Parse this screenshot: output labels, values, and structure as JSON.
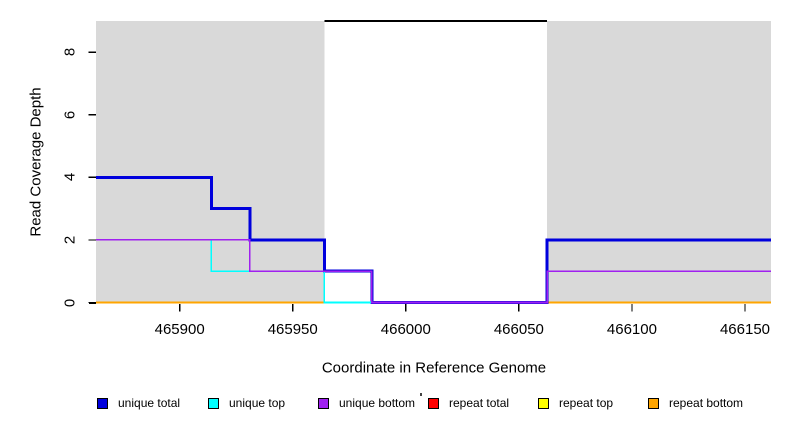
{
  "figure": {
    "xlabel": "Coordinate in Reference Genome",
    "ylabel": "Read Coverage Depth",
    "background_color": "#ffffff",
    "masked_region_color": "#d9d9d9",
    "axis_color": "#000000"
  },
  "chart_data": {
    "type": "line",
    "subtype": "step-coverage",
    "title": "",
    "xlabel": "Coordinate in Reference Genome",
    "ylabel": "Read Coverage Depth",
    "xlim": [
      465863,
      466161.5
    ],
    "ylim": [
      0,
      9
    ],
    "x_ticks": [
      465900,
      465950,
      466000,
      466050,
      466100,
      466150
    ],
    "y_ticks": [
      0,
      2,
      4,
      6,
      8
    ],
    "grid": false,
    "shaded_regions": [
      {
        "name": "left-shaded-region",
        "x0": 465863,
        "x1": 465964,
        "color": "#d9d9d9"
      },
      {
        "name": "right-shaded-region",
        "x0": 466062.5,
        "x1": 466161.5,
        "color": "#d9d9d9"
      }
    ],
    "gap_top_line": {
      "x0": 465964,
      "x1": 466062.5,
      "y": 9,
      "color": "#000000"
    },
    "series": [
      {
        "name": "unique total",
        "color": "#0000dd",
        "line_width": 3,
        "steps": [
          {
            "x": 465863,
            "depth": 4
          },
          {
            "x": 465914,
            "depth": 3
          },
          {
            "x": 465931,
            "depth": 2
          },
          {
            "x": 465964,
            "depth": 1
          },
          {
            "x": 465985,
            "depth": 0
          },
          {
            "x": 466062.5,
            "depth": 2
          }
        ]
      },
      {
        "name": "unique top",
        "color": "#00ffff",
        "line_width": 1.6,
        "steps": [
          {
            "x": 465863,
            "depth": 2
          },
          {
            "x": 465914,
            "depth": 1
          },
          {
            "x": 465964,
            "depth": 0
          },
          {
            "x": 466062.5,
            "depth": 1
          }
        ]
      },
      {
        "name": "unique bottom",
        "color": "#a020f0",
        "line_width": 1.6,
        "steps": [
          {
            "x": 465863,
            "depth": 2
          },
          {
            "x": 465931,
            "depth": 1
          },
          {
            "x": 465985,
            "depth": 0
          },
          {
            "x": 466062.5,
            "depth": 1
          }
        ]
      },
      {
        "name": "repeat total",
        "color": "#ff0000",
        "line_width": 1.5,
        "steps": [
          {
            "x": 465863,
            "depth": 0
          }
        ]
      },
      {
        "name": "repeat top",
        "color": "#ffff00",
        "line_width": 1.5,
        "steps": [
          {
            "x": 465863,
            "depth": 0
          }
        ]
      },
      {
        "name": "repeat bottom",
        "color": "#ffa500",
        "line_width": 1.8,
        "steps": [
          {
            "x": 465863,
            "depth": 0
          }
        ]
      }
    ],
    "draw_order": [
      "repeat total",
      "repeat top",
      "repeat bottom",
      "unique total",
      "unique top",
      "unique bottom"
    ],
    "legend_position": "bottom"
  },
  "legend": {
    "items": [
      {
        "label": "unique total",
        "color": "#0000dd"
      },
      {
        "label": "unique top",
        "color": "#00ffff"
      },
      {
        "label": "unique bottom",
        "color": "#a020f0"
      },
      {
        "label": "repeat total",
        "color": "#ff0000"
      },
      {
        "label": "repeat top",
        "color": "#ffff00"
      },
      {
        "label": "repeat bottom",
        "color": "#ffa500"
      }
    ]
  }
}
